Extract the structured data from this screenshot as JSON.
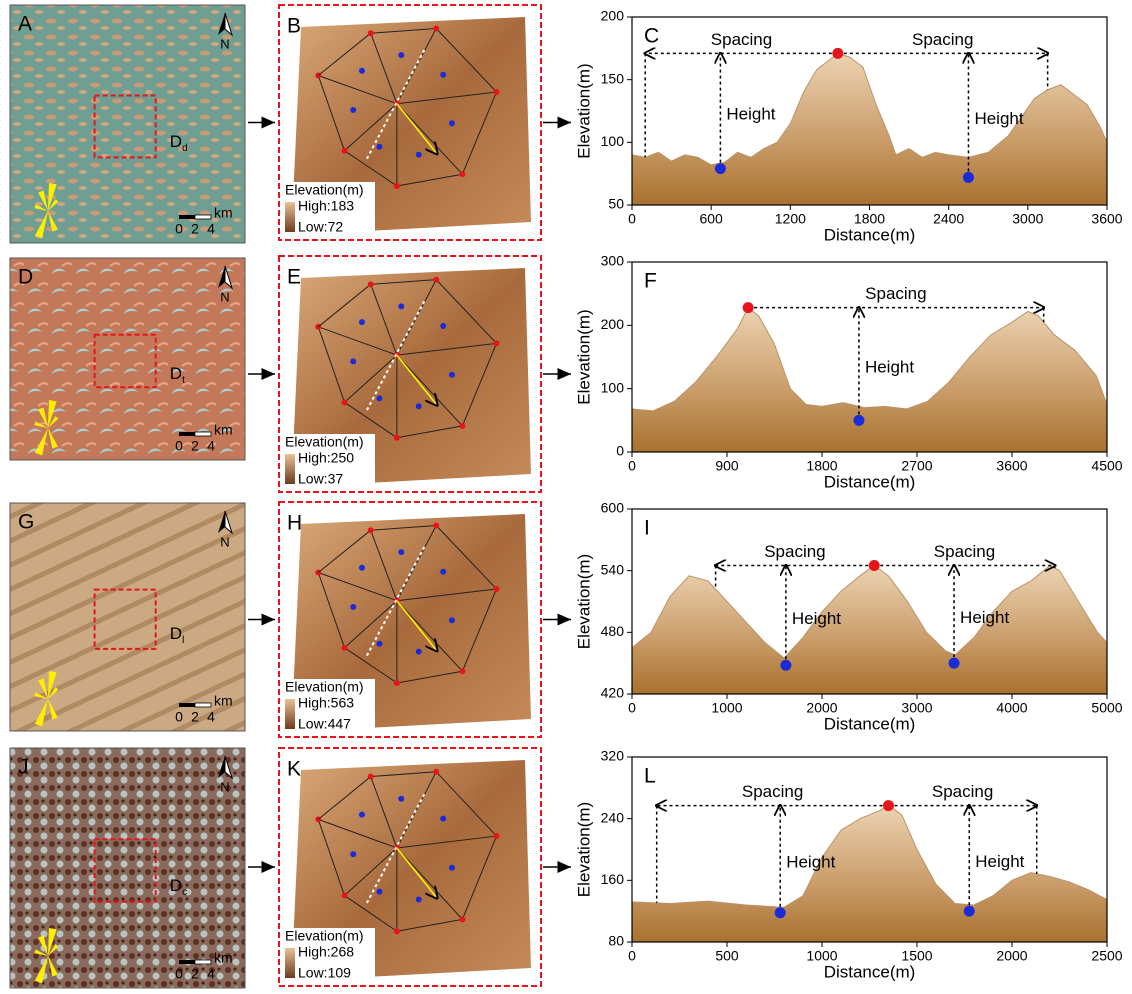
{
  "chart_data": [
    {
      "type": "area",
      "letter": "C",
      "x_label": "Distance(m)",
      "y_label": "Elevation(m)",
      "x": [
        0,
        100,
        200,
        300,
        400,
        500,
        600,
        700,
        800,
        900,
        1000,
        1100,
        1200,
        1300,
        1400,
        1500,
        1560,
        1650,
        1750,
        1850,
        1950,
        2000,
        2100,
        2200,
        2300,
        2400,
        2550,
        2700,
        2850,
        2950,
        3050,
        3150,
        3250,
        3350,
        3450,
        3550,
        3600
      ],
      "values": [
        90,
        88,
        92,
        85,
        90,
        88,
        82,
        84,
        92,
        88,
        95,
        100,
        115,
        140,
        158,
        166,
        171,
        168,
        160,
        130,
        105,
        90,
        95,
        88,
        92,
        90,
        88,
        92,
        105,
        120,
        135,
        142,
        146,
        138,
        130,
        112,
        100
      ],
      "xlim": [
        0,
        3600
      ],
      "xticks": [
        0,
        600,
        1200,
        1800,
        2400,
        3000,
        3600
      ],
      "ylim": [
        50,
        200
      ],
      "yticks": [
        50,
        100,
        150,
        200
      ],
      "peak": {
        "x": 1560,
        "y": 171
      },
      "troughs": [
        {
          "x": 670,
          "y": 79
        },
        {
          "x": 2550,
          "y": 72
        }
      ],
      "spacing_x": [
        100,
        3150
      ],
      "spacing_label": "Spacing",
      "height_label": "Height"
    },
    {
      "type": "area",
      "letter": "F",
      "x_label": "Distance(m)",
      "y_label": "Elevation(m)",
      "x": [
        0,
        200,
        400,
        600,
        800,
        1000,
        1100,
        1200,
        1350,
        1500,
        1650,
        1800,
        2000,
        2200,
        2400,
        2600,
        2800,
        3000,
        3200,
        3400,
        3600,
        3750,
        3850,
        4000,
        4200,
        4400,
        4500
      ],
      "values": [
        68,
        65,
        80,
        110,
        150,
        195,
        228,
        215,
        170,
        100,
        75,
        72,
        78,
        70,
        72,
        68,
        80,
        110,
        150,
        185,
        205,
        222,
        215,
        185,
        160,
        120,
        75
      ],
      "xlim": [
        0,
        4500
      ],
      "xticks": [
        0,
        900,
        1800,
        2700,
        3600,
        4500
      ],
      "ylim": [
        0,
        300
      ],
      "yticks": [
        0,
        100,
        200,
        300
      ],
      "peak": {
        "x": 1100,
        "y": 228
      },
      "troughs": [
        {
          "x": 2150,
          "y": 50
        }
      ],
      "spacing_x": [
        3900
      ],
      "spacing_label": "Spacing",
      "height_label": "Height"
    },
    {
      "type": "area",
      "letter": "I",
      "x_label": "Distance(m)",
      "y_label": "Elevation(m)",
      "x": [
        0,
        200,
        400,
        600,
        800,
        1000,
        1200,
        1400,
        1600,
        1800,
        2000,
        2200,
        2400,
        2550,
        2700,
        2900,
        3100,
        3300,
        3400,
        3600,
        3800,
        4000,
        4200,
        4400,
        4500,
        4700,
        4900,
        5000
      ],
      "values": [
        465,
        480,
        515,
        535,
        530,
        510,
        490,
        470,
        455,
        475,
        500,
        520,
        535,
        545,
        535,
        510,
        480,
        462,
        458,
        475,
        500,
        520,
        530,
        545,
        540,
        510,
        480,
        470
      ],
      "xlim": [
        0,
        5000
      ],
      "xticks": [
        0,
        1000,
        2000,
        3000,
        4000,
        5000
      ],
      "ylim": [
        420,
        600
      ],
      "yticks": [
        420,
        480,
        540,
        600
      ],
      "peak": {
        "x": 2550,
        "y": 545
      },
      "troughs": [
        {
          "x": 1620,
          "y": 448
        },
        {
          "x": 3390,
          "y": 450
        }
      ],
      "spacing_x": [
        880,
        4450
      ],
      "spacing_label": "Spacing",
      "height_label": "Height"
    },
    {
      "type": "area",
      "letter": "L",
      "x_label": "Distance(m)",
      "y_label": "Elevation(m)",
      "x": [
        0,
        200,
        400,
        600,
        800,
        900,
        1000,
        1100,
        1200,
        1300,
        1350,
        1420,
        1500,
        1600,
        1700,
        1800,
        1900,
        2000,
        2100,
        2200,
        2300,
        2400,
        2500
      ],
      "values": [
        132,
        130,
        133,
        128,
        125,
        140,
        190,
        225,
        240,
        250,
        257,
        245,
        200,
        155,
        130,
        128,
        140,
        160,
        170,
        165,
        158,
        148,
        135
      ],
      "xlim": [
        0,
        2500
      ],
      "xticks": [
        0,
        500,
        1000,
        1500,
        2000,
        2500
      ],
      "ylim": [
        80,
        320
      ],
      "yticks": [
        80,
        160,
        240,
        320
      ],
      "peak": {
        "x": 1350,
        "y": 257
      },
      "troughs": [
        {
          "x": 780,
          "y": 118
        },
        {
          "x": 1775,
          "y": 120
        }
      ],
      "spacing_x": [
        130,
        2130
      ],
      "spacing_label": "Spacing",
      "height_label": "Height"
    }
  ],
  "images": [
    {
      "letter": "A",
      "dune": "D",
      "dune_sub": "d",
      "north": "N",
      "scale_unit": "km",
      "scale_labels": [
        0,
        2,
        4
      ]
    },
    {
      "letter": "D",
      "dune": "D",
      "dune_sub": "t",
      "north": "N",
      "scale_unit": "km",
      "scale_labels": [
        0,
        2,
        4
      ]
    },
    {
      "letter": "G",
      "dune": "D",
      "dune_sub": "l",
      "north": "N",
      "scale_unit": "km",
      "scale_labels": [
        0,
        2,
        4
      ]
    },
    {
      "letter": "J",
      "dune": "D",
      "dune_sub": "c",
      "north": "N",
      "scale_unit": "km",
      "scale_labels": [
        0,
        2,
        4
      ]
    }
  ],
  "dems": [
    {
      "letter": "B",
      "legend_title": "Elevation(m)",
      "high": "High:183",
      "low": "Low:72"
    },
    {
      "letter": "E",
      "legend_title": "Elevation(m)",
      "high": "High:250",
      "low": "Low:37"
    },
    {
      "letter": "H",
      "legend_title": "Elevation(m)",
      "high": "High:563",
      "low": "Low:447"
    },
    {
      "letter": "K",
      "legend_title": "Elevation(m)",
      "high": "High:268",
      "low": "Low:109"
    }
  ]
}
